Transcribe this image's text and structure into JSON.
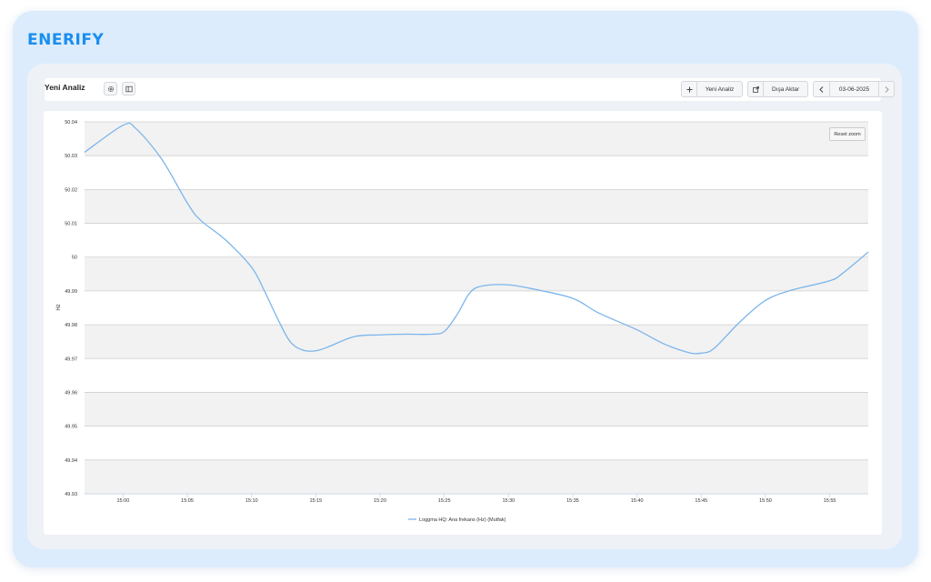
{
  "app": {
    "brand": "ENERIFY"
  },
  "toolbar": {
    "title": "Yeni Analiz",
    "settings_icon": "gear-icon",
    "layout_icon": "panel-layout-icon",
    "new_analysis_label": "Yeni Analiz",
    "export_label": "Dışa Aktar",
    "date_label": "03-06-2025"
  },
  "chart": {
    "reset_zoom_label": "Reset zoom",
    "line_color": "#7cb5ec"
  },
  "chart_data": {
    "type": "line",
    "title": "",
    "xlabel": "",
    "ylabel": "Hz",
    "ylim": [
      49.93,
      50.04
    ],
    "y_ticks": [
      "50.04",
      "50.03",
      "50.02",
      "50.01",
      "50",
      "49.99",
      "49.98",
      "49.97",
      "49.96",
      "49.95",
      "49.94",
      "49.93"
    ],
    "x_ticks": [
      "15:00",
      "15:05",
      "15:10",
      "15:15",
      "15:20",
      "15:25",
      "15:30",
      "15:35",
      "15:40",
      "15:45",
      "15:50",
      "15:55"
    ],
    "x_start": "14:57",
    "x_end": "15:58",
    "grid": true,
    "legend_position": "bottom-center",
    "series": [
      {
        "name": "Loggma HQ: Ana frekans (Hz) (Mutfak)",
        "color": "#7cb5ec",
        "points": [
          [
            "14:57",
            50.031
          ],
          [
            "15:00",
            50.039
          ],
          [
            "15:01",
            50.038
          ],
          [
            "15:03",
            50.029
          ],
          [
            "15:05",
            50.016
          ],
          [
            "15:06",
            50.011
          ],
          [
            "15:08",
            50.005
          ],
          [
            "15:10",
            49.997
          ],
          [
            "15:11",
            49.99
          ],
          [
            "15:12",
            49.982
          ],
          [
            "15:13",
            49.975
          ],
          [
            "15:14",
            49.9725
          ],
          [
            "15:15",
            49.9723
          ],
          [
            "15:16",
            49.9735
          ],
          [
            "15:18",
            49.9765
          ],
          [
            "15:20",
            49.977
          ],
          [
            "15:22",
            49.9772
          ],
          [
            "15:24",
            49.9772
          ],
          [
            "15:25",
            49.978
          ],
          [
            "15:26",
            49.983
          ],
          [
            "15:27",
            49.9895
          ],
          [
            "15:28",
            49.9915
          ],
          [
            "15:30",
            49.9918
          ],
          [
            "15:32",
            49.9905
          ],
          [
            "15:35",
            49.9878
          ],
          [
            "15:37",
            49.9835
          ],
          [
            "15:40",
            49.9785
          ],
          [
            "15:42",
            49.9745
          ],
          [
            "15:44",
            49.9718
          ],
          [
            "15:45",
            49.9716
          ],
          [
            "15:46",
            49.973
          ],
          [
            "15:48",
            49.9808
          ],
          [
            "15:50",
            49.9872
          ],
          [
            "15:52",
            49.9902
          ],
          [
            "15:55",
            49.993
          ],
          [
            "15:56",
            49.9952
          ],
          [
            "15:58",
            50.0015
          ]
        ]
      }
    ]
  }
}
